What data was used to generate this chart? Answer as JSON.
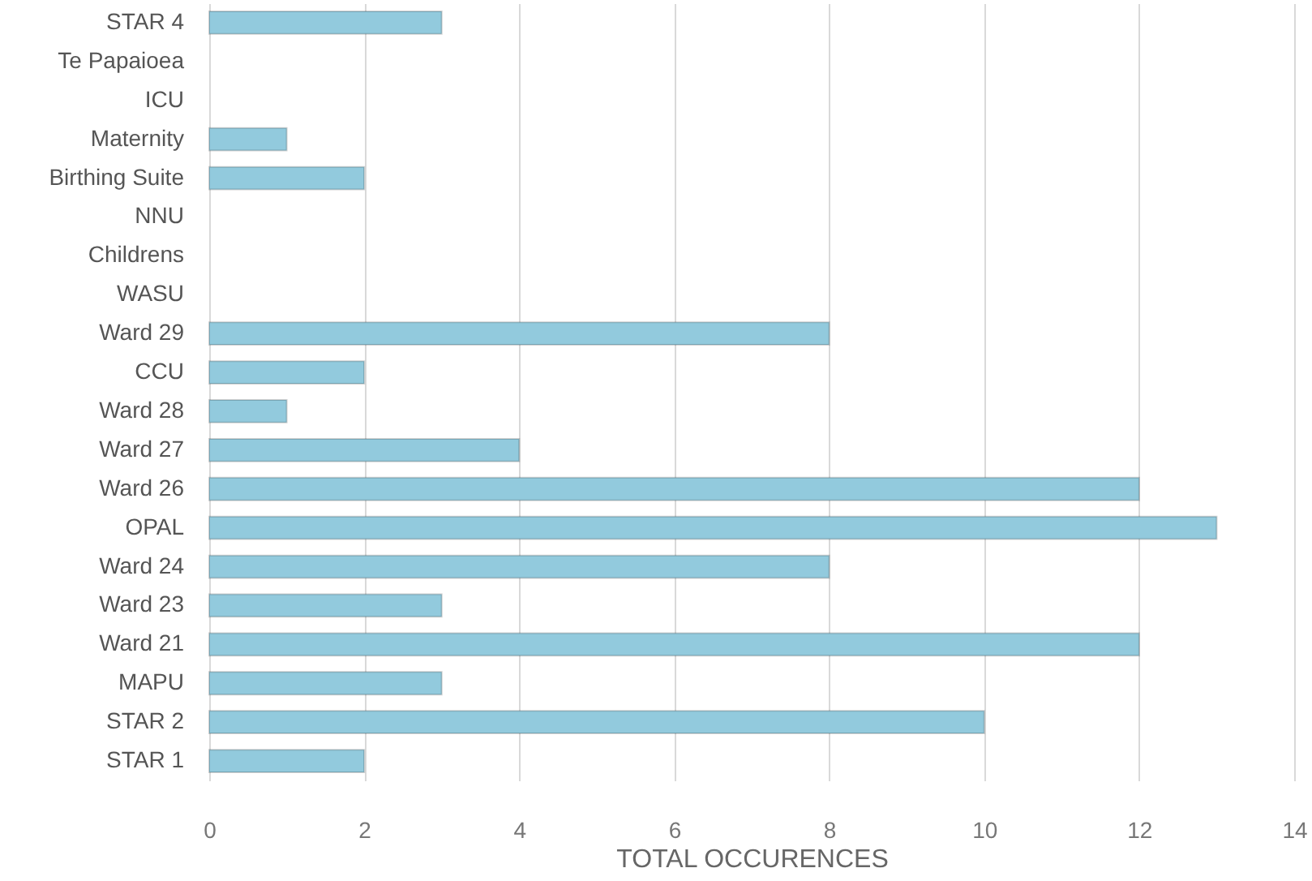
{
  "chart_data": {
    "type": "bar",
    "orientation": "horizontal",
    "categories": [
      "STAR 4",
      "Te Papaioea",
      "ICU",
      "Maternity",
      "Birthing Suite",
      "NNU",
      "Childrens",
      "WASU",
      "Ward 29",
      "CCU",
      "Ward 28",
      "Ward 27",
      "Ward 26",
      "OPAL",
      "Ward 24",
      "Ward 23",
      "Ward 21",
      "MAPU",
      "STAR 2",
      "STAR 1"
    ],
    "values": [
      3,
      0,
      0,
      1,
      2,
      0,
      0,
      0,
      8,
      2,
      1,
      4,
      12,
      13,
      8,
      3,
      12,
      3,
      10,
      2
    ],
    "color": "#92cadd",
    "xlabel": "TOTAL OCCURENCES",
    "xlim": [
      0,
      14
    ],
    "xticks": [
      0,
      2,
      4,
      6,
      8,
      10,
      12,
      14
    ],
    "grid": "x"
  }
}
